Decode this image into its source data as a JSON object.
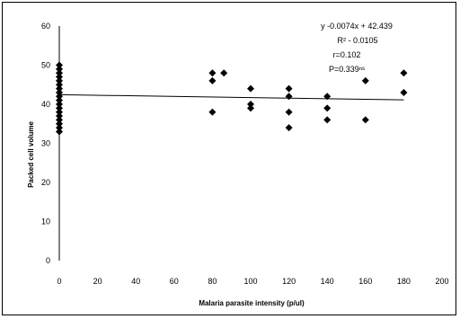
{
  "chart_data": {
    "type": "scatter",
    "xlabel": "Malaria parasite intensity (p/ul)",
    "ylabel": "Packed cell volume",
    "xlim": [
      0,
      200
    ],
    "ylim": [
      0,
      60
    ],
    "x_ticks": [
      "0",
      "20",
      "40",
      "60",
      "80",
      "100",
      "120",
      "140",
      "160",
      "180",
      "200"
    ],
    "y_ticks": [
      "0",
      "10",
      "20",
      "30",
      "40",
      "50",
      "60"
    ],
    "grid": false,
    "points": [
      [
        0,
        33
      ],
      [
        0,
        34
      ],
      [
        0,
        35
      ],
      [
        0,
        36
      ],
      [
        0,
        37
      ],
      [
        0,
        38
      ],
      [
        0,
        39
      ],
      [
        0,
        40
      ],
      [
        0,
        41
      ],
      [
        0,
        42
      ],
      [
        0,
        43
      ],
      [
        0,
        44
      ],
      [
        0,
        45
      ],
      [
        0,
        46
      ],
      [
        0,
        47
      ],
      [
        0,
        48
      ],
      [
        0,
        49
      ],
      [
        0,
        50
      ],
      [
        80,
        38
      ],
      [
        80,
        46
      ],
      [
        80,
        48
      ],
      [
        86,
        48
      ],
      [
        100,
        39
      ],
      [
        100,
        40
      ],
      [
        100,
        44
      ],
      [
        120,
        34
      ],
      [
        120,
        38
      ],
      [
        120,
        42
      ],
      [
        120,
        44
      ],
      [
        140,
        36
      ],
      [
        140,
        39
      ],
      [
        140,
        42
      ],
      [
        160,
        36
      ],
      [
        160,
        46
      ],
      [
        180,
        43
      ],
      [
        180,
        48
      ]
    ],
    "trendline": {
      "slope": -0.0074,
      "intercept": 42.439
    },
    "annotations": {
      "equation": "y  -0.0074x + 42.439",
      "r_squared": "R² - 0.0105",
      "r": "r=0.102",
      "p": "P=0.339ⁿˢ"
    }
  }
}
